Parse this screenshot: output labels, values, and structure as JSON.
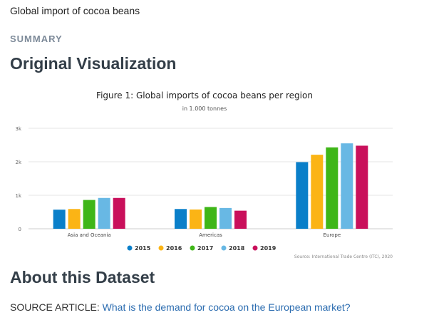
{
  "page": {
    "title": "Global import of cocoa beans",
    "section_label": "SUMMARY",
    "viz_heading": "Original Visualization",
    "about_heading": "About this Dataset",
    "source_prefix": "SOURCE ARTICLE: ",
    "source_link": "What is the demand for cocoa on the European market?"
  },
  "chart_data": {
    "type": "bar",
    "title": "Figure 1: Global imports of cocoa beans per region",
    "subtitle": "in 1.000 tonnes",
    "source": "Source: International Trade Centre (ITC), 2020",
    "categories": [
      "Asia and Oceania",
      "Americas",
      "Europe"
    ],
    "ylim": [
      0,
      3000
    ],
    "yticks": [
      0,
      1000,
      2000,
      3000
    ],
    "ytick_labels": [
      "0",
      "1k",
      "2k",
      "3k"
    ],
    "grid": true,
    "legend_position": "bottom",
    "series": [
      {
        "name": "2015",
        "color": "#0a7fc9",
        "values": [
          570,
          590,
          1990
        ]
      },
      {
        "name": "2016",
        "color": "#fbb415",
        "values": [
          590,
          575,
          2210
        ]
      },
      {
        "name": "2017",
        "color": "#3fb618",
        "values": [
          860,
          650,
          2430
        ]
      },
      {
        "name": "2018",
        "color": "#68b8e4",
        "values": [
          920,
          620,
          2550
        ]
      },
      {
        "name": "2019",
        "color": "#c9105b",
        "values": [
          920,
          540,
          2480
        ]
      }
    ]
  }
}
